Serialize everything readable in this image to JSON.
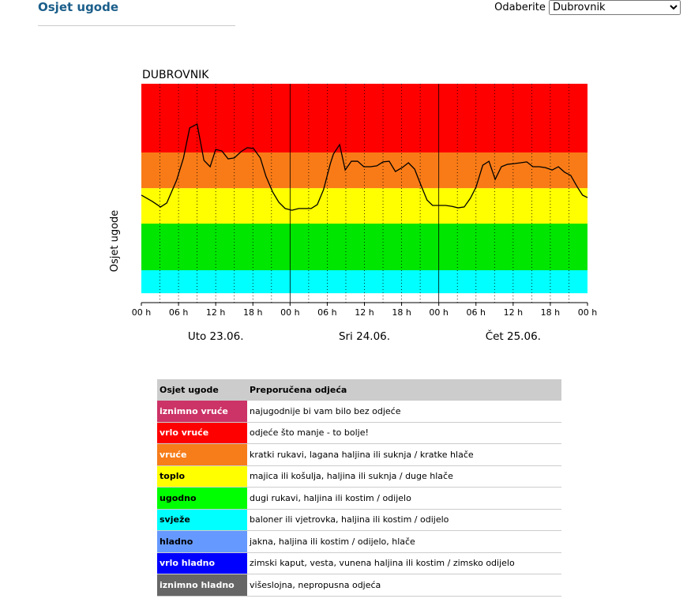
{
  "header": {
    "title": "Osjet ugode",
    "select_label": "Odaberite",
    "selected": "Dubrovnik"
  },
  "chart_data": {
    "type": "line",
    "title": "DUBROVNIK",
    "y_label": "Osjet ugode",
    "xlim": [
      0,
      72
    ],
    "ylim": [
      0,
      100
    ],
    "xticks": [
      {
        "value": 0,
        "label": "00 h"
      },
      {
        "value": 6,
        "label": "06 h"
      },
      {
        "value": 12,
        "label": "12 h"
      },
      {
        "value": 18,
        "label": "18 h"
      },
      {
        "value": 24,
        "label": "00 h"
      },
      {
        "value": 30,
        "label": "06 h"
      },
      {
        "value": 36,
        "label": "12 h"
      },
      {
        "value": 42,
        "label": "18 h"
      },
      {
        "value": 48,
        "label": "00 h"
      },
      {
        "value": 54,
        "label": "06 h"
      },
      {
        "value": 60,
        "label": "12 h"
      },
      {
        "value": 66,
        "label": "18 h"
      },
      {
        "value": 72,
        "label": "00 h"
      }
    ],
    "xgrid": [
      3,
      6,
      9,
      12,
      15,
      18,
      21,
      27,
      30,
      33,
      36,
      39,
      42,
      45,
      51,
      54,
      57,
      60,
      63,
      66,
      69
    ],
    "day_bounds": [
      24,
      48
    ],
    "days": [
      "Uto 23.06.",
      "Sri 24.06.",
      "Čet  25.06."
    ],
    "bands": [
      {
        "from": 4.3,
        "to": 14.8,
        "color": "#00ffff"
      },
      {
        "from": 14.8,
        "to": 36.1,
        "color": "#00e600"
      },
      {
        "from": 36.1,
        "to": 52.3,
        "color": "#ffff00"
      },
      {
        "from": 52.3,
        "to": 68.6,
        "color": "#f97b17"
      },
      {
        "from": 68.6,
        "to": 100,
        "color": "#ff0000"
      }
    ],
    "x": [
      0,
      1.8,
      3.1,
      4.1,
      5.7,
      6.8,
      7.8,
      9,
      10.1,
      11.1,
      12,
      13,
      14,
      15,
      16.1,
      17.1,
      18.1,
      19.2,
      20.1,
      21.2,
      22.2,
      23.2,
      24.3,
      25.4,
      26.4,
      27.4,
      28.4,
      29.4,
      30.5,
      31,
      32,
      32.9,
      33.9,
      34.9,
      35.9,
      37,
      38,
      39,
      40,
      41,
      42.1,
      43.1,
      44.1,
      45.1,
      46.1,
      47,
      48,
      49.1,
      50.1,
      51.1,
      52.1,
      53.1,
      54,
      55.1,
      56.1,
      57.1,
      58.1,
      59.1,
      60.1,
      61.2,
      62.2,
      63.2,
      64.2,
      65.2,
      66.3,
      67.3,
      68.3,
      69.3,
      70.3,
      71.2,
      72
    ],
    "series": [
      {
        "color": "#000000",
        "values": [
          49.1,
          46.2,
          43.7,
          45.5,
          56,
          66.1,
          79.8,
          81.6,
          65,
          62.1,
          70,
          69.3,
          65.7,
          66.1,
          69,
          70.8,
          70.4,
          66.1,
          57.8,
          50.5,
          45.8,
          43,
          42.2,
          43,
          43,
          43,
          44.8,
          51.6,
          63.5,
          67.9,
          72.2,
          60.6,
          64.6,
          64.6,
          62.1,
          62.1,
          62.5,
          64.3,
          64.6,
          59.9,
          61.7,
          63.9,
          61,
          53.8,
          46.9,
          44.4,
          44.4,
          44.4,
          44,
          43.3,
          43.7,
          47.7,
          52.7,
          62.8,
          64.6,
          56.3,
          62.1,
          63.2,
          63.5,
          63.9,
          64.3,
          62.1,
          62.1,
          61.7,
          60.6,
          62.1,
          59.6,
          58.1,
          53.1,
          49.1,
          48
        ]
      }
    ]
  },
  "table": {
    "columns": [
      "Osjet ugode",
      "Preporučena odjeća"
    ],
    "rows": [
      {
        "label": "iznimno vruće",
        "text": "najugodnije bi vam bilo bez odjeće",
        "color": "#cc3366",
        "text_color": "#ffffff"
      },
      {
        "label": "vrlo vruće",
        "text": "odjeće što manje - to bolje!",
        "color": "#ff0000",
        "text_color": "#ffffff"
      },
      {
        "label": "vruće",
        "text": "kratki rukavi, lagana haljina ili suknja / kratke hlače",
        "color": "#f77c1a",
        "text_color": "#ffffff"
      },
      {
        "label": "toplo",
        "text": "majica ili košulja, haljina ili suknja / duge hlače",
        "color": "#ffff00",
        "text_color": "#000000"
      },
      {
        "label": "ugodno",
        "text": "dugi rukavi, haljina ili kostim / odijelo",
        "color": "#00ff00",
        "text_color": "#000000"
      },
      {
        "label": "svježe",
        "text": "baloner ili vjetrovka, haljina ili kostim / odijelo",
        "color": "#00ffff",
        "text_color": "#000000"
      },
      {
        "label": "hladno",
        "text": "jakna, haljina ili kostim / odijelo, hlače",
        "color": "#6699ff",
        "text_color": "#000000"
      },
      {
        "label": "vrlo hladno",
        "text": "zimski kaput, vesta, vunena haljina ili kostim / zimsko odijelo",
        "color": "#0000ff",
        "text_color": "#ffffff"
      },
      {
        "label": "iznimno hladno",
        "text": "višeslojna, nepropusna odjeća",
        "color": "#666666",
        "text_color": "#ffffff"
      }
    ]
  }
}
